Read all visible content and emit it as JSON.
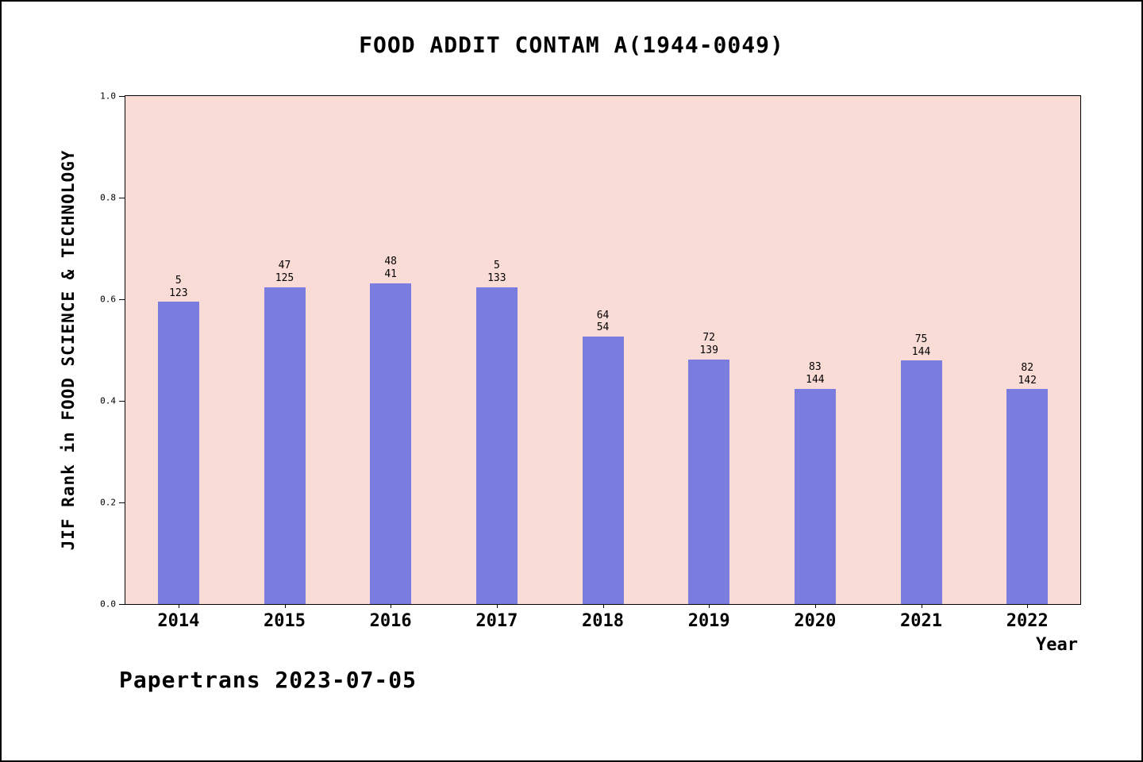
{
  "title": "FOOD ADDIT CONTAM A(1944-0049)",
  "footer": "Papertrans 2023-07-05",
  "chart_data": {
    "type": "bar",
    "title": "FOOD ADDIT CONTAM A(1944-0049)",
    "xlabel": "Year",
    "ylabel": "JIF Rank in FOOD SCIENCE & TECHNOLOGY",
    "ylim": [
      0.0,
      1.0
    ],
    "yticks": [
      0.0,
      0.2,
      0.4,
      0.6,
      0.8,
      1.0
    ],
    "categories": [
      "2014",
      "2015",
      "2016",
      "2017",
      "2018",
      "2019",
      "2020",
      "2021",
      "2022"
    ],
    "values": [
      0.595,
      0.624,
      0.632,
      0.624,
      0.527,
      0.482,
      0.424,
      0.479,
      0.423
    ],
    "bar_labels": [
      [
        "5",
        "123"
      ],
      [
        "47",
        "125"
      ],
      [
        "48",
        "41"
      ],
      [
        "5",
        "133"
      ],
      [
        "64",
        "54"
      ],
      [
        "72",
        "139"
      ],
      [
        "83",
        "144"
      ],
      [
        "75",
        "144"
      ],
      [
        "82",
        "142"
      ]
    ],
    "bar_color": "#7b7ce0",
    "plot_bg": "#fadcd7",
    "grid": false,
    "legend": "none"
  }
}
